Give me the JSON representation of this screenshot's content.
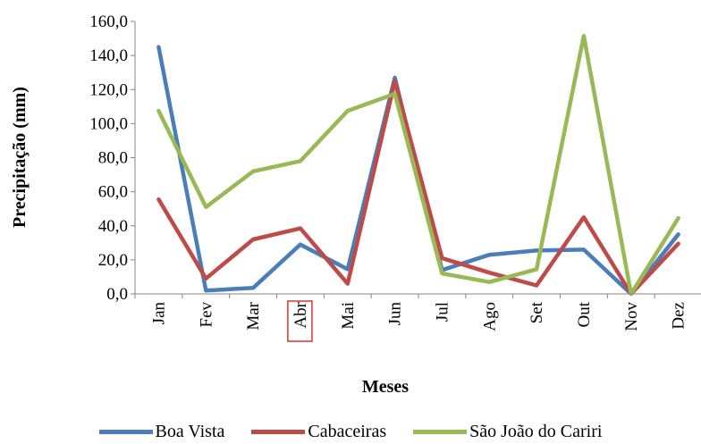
{
  "chart_data": {
    "type": "line",
    "title": "",
    "xlabel": "Meses",
    "ylabel": "Precipitação (mm)",
    "ylim": [
      0,
      160
    ],
    "yticks": [
      "0,0",
      "20,0",
      "40,0",
      "60,0",
      "80,0",
      "100,0",
      "120,0",
      "140,0",
      "160,0"
    ],
    "categories": [
      "Jan",
      "Fev",
      "Mar",
      "Abr",
      "Mai",
      "Jun",
      "Jul",
      "Ago",
      "Set",
      "Out",
      "Nov",
      "Dez"
    ],
    "highlighted_category": "Abr",
    "grid": false,
    "legend_position": "bottom",
    "series": [
      {
        "name": "Boa Vista",
        "color": "#4a7ebb",
        "values": [
          145,
          2,
          3.5,
          29,
          14.5,
          127,
          14,
          23,
          25.5,
          26,
          0,
          35
        ]
      },
      {
        "name": "Cabaceiras",
        "color": "#be4b48",
        "values": [
          55.5,
          9,
          32,
          38.5,
          6,
          125,
          21,
          12.5,
          5,
          45,
          0,
          29.5
        ]
      },
      {
        "name": "São João do Cariri",
        "color": "#98b954",
        "values": [
          107.5,
          51,
          72,
          78,
          107.5,
          117.5,
          12,
          7,
          14.5,
          151.5,
          0,
          44.5
        ]
      }
    ]
  }
}
